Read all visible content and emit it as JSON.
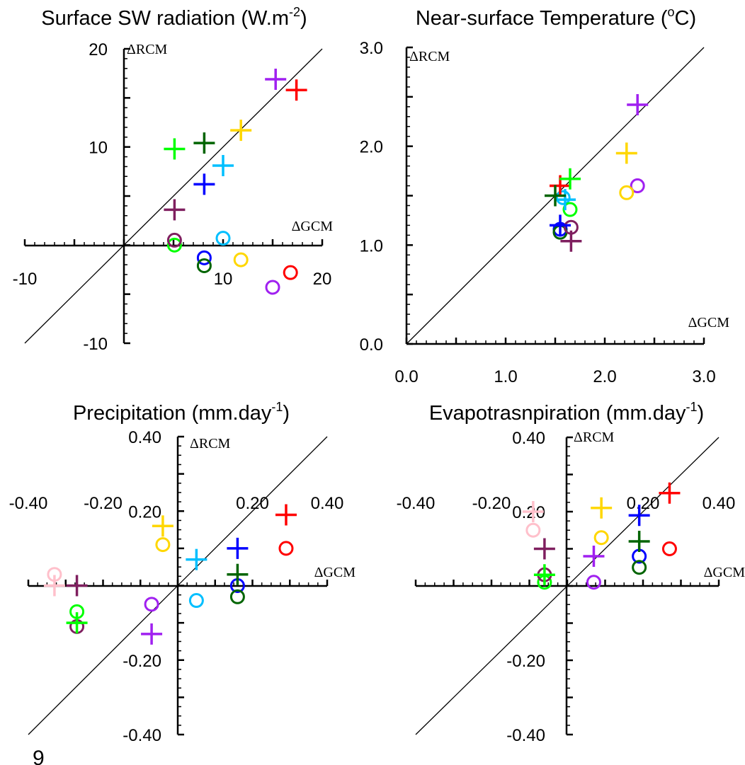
{
  "page": {
    "stray_text": "9"
  },
  "chart_data": [
    {
      "id": "sw",
      "type": "scatter",
      "title": "Surface SW radiation (W.m",
      "title_sup": "-2",
      "title_end": ")",
      "xlabel": "ΔGCM",
      "ylabel": "ΔRCM",
      "xlim": [
        -10,
        20
      ],
      "ylim": [
        -10,
        20
      ],
      "xticks": [
        -10,
        10,
        20
      ],
      "xtick_labels": [
        "-10",
        "10",
        "20"
      ],
      "yticks": [
        -10,
        10,
        20
      ],
      "ytick_labels": [
        "-10",
        "10",
        "20"
      ],
      "minor_step": 1,
      "major_step": 5,
      "diagonal": true,
      "series": [
        {
          "color": "#ff0000",
          "plus": [
            17.4,
            15.8
          ],
          "circle": [
            16.8,
            -2.8
          ]
        },
        {
          "color": "#a020f0",
          "plus": [
            15.3,
            16.9
          ],
          "circle": [
            15.0,
            -4.3
          ]
        },
        {
          "color": "#ffd700",
          "plus": [
            11.8,
            11.7
          ],
          "circle": [
            11.8,
            -1.5
          ]
        },
        {
          "color": "#00bfff",
          "plus": [
            10.0,
            8.1
          ],
          "circle": [
            10.0,
            0.7
          ]
        },
        {
          "color": "#0000ff",
          "plus": [
            8.1,
            6.2
          ],
          "circle": [
            8.1,
            -1.3
          ]
        },
        {
          "color": "#006400",
          "plus": [
            8.1,
            10.4
          ],
          "circle": [
            8.1,
            -2.1
          ]
        },
        {
          "color": "#00ff00",
          "plus": [
            5.1,
            9.8
          ],
          "circle": [
            5.1,
            0.0
          ]
        },
        {
          "color": "#7f1f5f",
          "plus": [
            5.1,
            3.6
          ],
          "circle": [
            5.1,
            0.5
          ]
        }
      ]
    },
    {
      "id": "tas",
      "type": "scatter",
      "title": "Near-surface Temperature (",
      "title_sup": "o",
      "title_end": "C)",
      "xlabel": "ΔGCM",
      "ylabel": "ΔRCM",
      "xlim": [
        0,
        3
      ],
      "ylim": [
        0,
        3
      ],
      "xticks": [
        0,
        1,
        2,
        3
      ],
      "xtick_labels": [
        "0.0",
        "1.0",
        "2.0",
        "3.0"
      ],
      "yticks": [
        0,
        1,
        2,
        3
      ],
      "ytick_labels": [
        "0.0",
        "1.0",
        "2.0",
        "3.0"
      ],
      "minor_step": 0.1,
      "major_step": 0.5,
      "diagonal": true,
      "series": [
        {
          "color": "#ff0000",
          "plus": [
            1.55,
            1.6
          ],
          "circle": null
        },
        {
          "color": "#a020f0",
          "plus": [
            2.33,
            2.42
          ],
          "circle": [
            2.33,
            1.6
          ]
        },
        {
          "color": "#ffd700",
          "plus": [
            2.22,
            1.93
          ],
          "circle": [
            2.22,
            1.53
          ]
        },
        {
          "color": "#00bfff",
          "plus": [
            1.6,
            1.46
          ],
          "circle": [
            1.58,
            1.48
          ]
        },
        {
          "color": "#0000ff",
          "plus": [
            1.55,
            1.2
          ],
          "circle": [
            1.55,
            1.16
          ]
        },
        {
          "color": "#006400",
          "plus": [
            1.5,
            1.5
          ],
          "circle": [
            1.55,
            1.13
          ]
        },
        {
          "color": "#00ff00",
          "plus": [
            1.65,
            1.67
          ],
          "circle": [
            1.65,
            1.36
          ]
        },
        {
          "color": "#7f1f5f",
          "plus": [
            1.66,
            1.04
          ],
          "circle": [
            1.66,
            1.18
          ]
        }
      ]
    },
    {
      "id": "pr",
      "type": "scatter",
      "title": "Precipitation (mm.day",
      "title_sup": "-1",
      "title_end": ")",
      "xlabel": "ΔGCM",
      "ylabel": "ΔRCM",
      "xlim": [
        -0.4,
        0.4
      ],
      "ylim": [
        -0.4,
        0.4
      ],
      "xticks": [
        -0.4,
        -0.2,
        0.2,
        0.4
      ],
      "xtick_labels": [
        "-0.40",
        "-0.20",
        "0.20",
        "0.40"
      ],
      "yticks": [
        -0.4,
        -0.2,
        0.2,
        0.4
      ],
      "ytick_labels": [
        "-0.40",
        "-0.20",
        "0.20",
        "0.40"
      ],
      "minor_step": 0.025,
      "major_step": 0.1,
      "diagonal": true,
      "series": [
        {
          "color": "#ff0000",
          "plus": [
            0.29,
            0.19
          ],
          "circle": [
            0.29,
            0.1
          ]
        },
        {
          "color": "#a020f0",
          "plus": [
            -0.07,
            -0.13
          ],
          "circle": [
            -0.07,
            -0.05
          ]
        },
        {
          "color": "#ffd700",
          "plus": [
            -0.04,
            0.16
          ],
          "circle": [
            -0.04,
            0.11
          ]
        },
        {
          "color": "#00bfff",
          "plus": [
            0.05,
            0.07
          ],
          "circle": [
            0.05,
            -0.04
          ]
        },
        {
          "color": "#0000ff",
          "plus": [
            0.16,
            0.1
          ],
          "circle": [
            0.16,
            0.0
          ]
        },
        {
          "color": "#006400",
          "plus": [
            0.16,
            0.03
          ],
          "circle": [
            0.16,
            -0.03
          ]
        },
        {
          "color": "#00ff00",
          "plus": [
            -0.27,
            -0.1
          ],
          "circle": [
            -0.27,
            -0.07
          ]
        },
        {
          "color": "#7f1f5f",
          "plus": [
            -0.27,
            0.0
          ],
          "circle": [
            -0.27,
            -0.11
          ]
        },
        {
          "color": "#ffc0cb",
          "plus": [
            -0.33,
            0.0
          ],
          "circle": [
            -0.33,
            0.03
          ]
        }
      ]
    },
    {
      "id": "evspsbl",
      "type": "scatter",
      "title": "Evapotrasnpiration (mm.day",
      "title_sup": "-1",
      "title_end": ")",
      "xlabel": "ΔGCM",
      "ylabel": "ΔRCM",
      "xlim": [
        -0.4,
        0.4
      ],
      "ylim": [
        -0.4,
        0.4
      ],
      "xticks": [
        -0.4,
        -0.2,
        0.2,
        0.4
      ],
      "xtick_labels": [
        "-0.40",
        "-0.20",
        "0.20",
        "0.40"
      ],
      "yticks": [
        -0.4,
        -0.2,
        0.2,
        0.4
      ],
      "ytick_labels": [
        "-0.40",
        "-0.20",
        "0.20",
        "0.40"
      ],
      "minor_step": 0.025,
      "major_step": 0.1,
      "diagonal": true,
      "series": [
        {
          "color": "#ff0000",
          "plus": [
            0.27,
            0.25
          ],
          "circle": [
            0.27,
            0.1
          ]
        },
        {
          "color": "#a020f0",
          "plus": [
            0.07,
            0.08
          ],
          "circle": [
            0.07,
            0.01
          ]
        },
        {
          "color": "#ffd700",
          "plus": [
            0.09,
            0.21
          ],
          "circle": [
            0.09,
            0.13
          ]
        },
        {
          "color": "#0000ff",
          "plus": [
            0.19,
            0.19
          ],
          "circle": [
            0.19,
            0.08
          ]
        },
        {
          "color": "#006400",
          "plus": [
            0.19,
            0.12
          ],
          "circle": [
            0.19,
            0.05
          ]
        },
        {
          "color": "#00ff00",
          "plus": [
            -0.06,
            0.03
          ],
          "circle": [
            -0.06,
            0.01
          ]
        },
        {
          "color": "#7f1f5f",
          "plus": [
            -0.06,
            0.1
          ],
          "circle": [
            -0.06,
            0.03
          ]
        },
        {
          "color": "#ffc0cb",
          "plus": [
            -0.09,
            0.2
          ],
          "circle": [
            -0.09,
            0.15
          ]
        }
      ]
    }
  ]
}
